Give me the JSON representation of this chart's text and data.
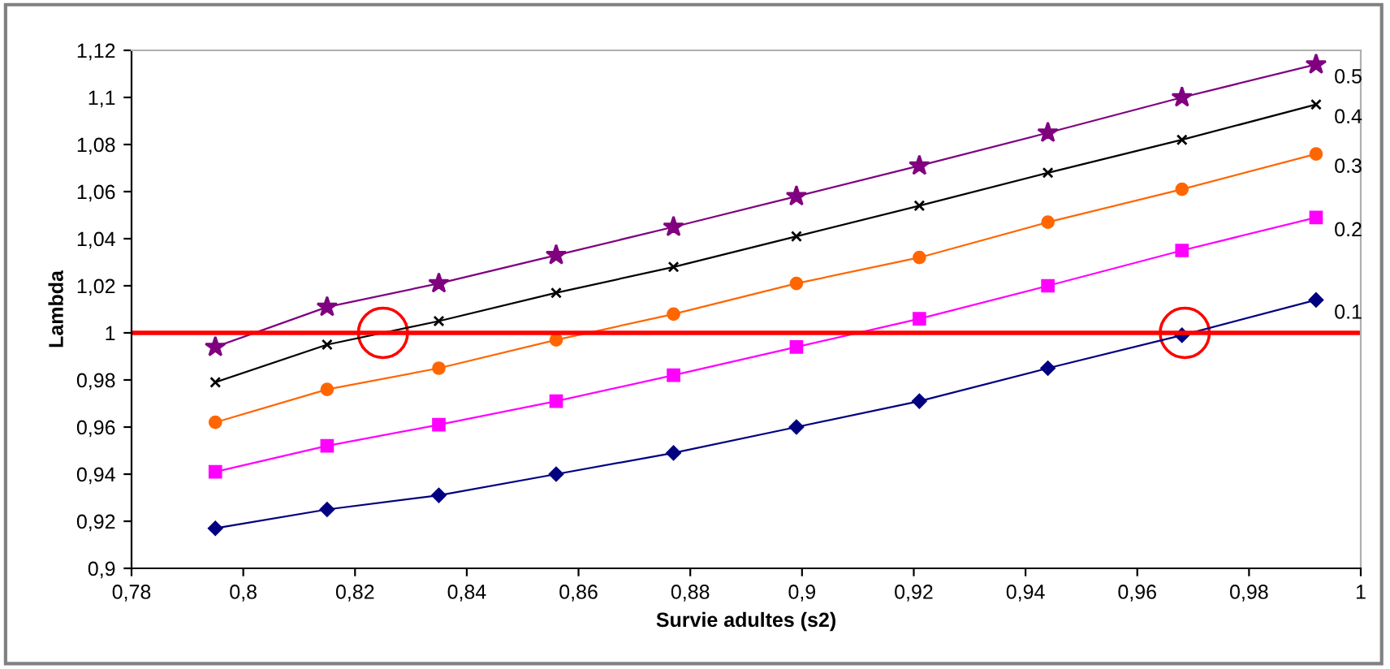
{
  "chart_data": {
    "type": "line",
    "xlabel": "Survie adultes (s2)",
    "ylabel": "Lambda",
    "x": [
      0.795,
      0.815,
      0.835,
      0.856,
      0.877,
      0.899,
      0.921,
      0.944,
      0.968,
      0.992
    ],
    "xlim": [
      0.78,
      1
    ],
    "xticks": [
      {
        "value": 0.78,
        "label": "0,78"
      },
      {
        "value": 0.8,
        "label": "0,8"
      },
      {
        "value": 0.82,
        "label": "0,82"
      },
      {
        "value": 0.84,
        "label": "0,84"
      },
      {
        "value": 0.86,
        "label": "0,86"
      },
      {
        "value": 0.88,
        "label": "0,88"
      },
      {
        "value": 0.9,
        "label": "0,9"
      },
      {
        "value": 0.92,
        "label": "0,92"
      },
      {
        "value": 0.94,
        "label": "0,94"
      },
      {
        "value": 0.96,
        "label": "0,96"
      },
      {
        "value": 0.98,
        "label": "0,98"
      },
      1
    ],
    "ylim": [
      0.9,
      1.12
    ],
    "yticks": [
      {
        "value": 0.9,
        "label": "0,9"
      },
      {
        "value": 0.92,
        "label": "0,92"
      },
      {
        "value": 0.94,
        "label": "0,94"
      },
      {
        "value": 0.96,
        "label": "0,96"
      },
      {
        "value": 0.98,
        "label": "0,98"
      },
      1,
      {
        "value": 1.02,
        "label": "1,02"
      },
      {
        "value": 1.04,
        "label": "1,04"
      },
      {
        "value": 1.06,
        "label": "1,06"
      },
      {
        "value": 1.08,
        "label": "1,08"
      },
      {
        "value": 1.1,
        "label": "1,1"
      },
      {
        "value": 1.12,
        "label": "1,12"
      }
    ],
    "grid": false,
    "legend": false,
    "ref_lines": [
      {
        "axis": "y",
        "value": 1,
        "color": "#ff0000",
        "line_style": "solid"
      }
    ],
    "series": [
      {
        "name": "0.1",
        "color": "#000080",
        "marker": "diamond",
        "values": [
          0.917,
          0.925,
          0.931,
          0.94,
          0.949,
          0.96,
          0.971,
          0.985,
          0.999,
          1.014
        ]
      },
      {
        "name": "0.2",
        "color": "#ff00ff",
        "marker": "square",
        "values": [
          0.941,
          0.952,
          0.961,
          0.971,
          0.982,
          0.994,
          1.006,
          1.02,
          1.035,
          1.049
        ]
      },
      {
        "name": "0.3",
        "color": "#ff6600",
        "marker": "circle",
        "values": [
          0.962,
          0.976,
          0.985,
          0.997,
          1.008,
          1.021,
          1.032,
          1.047,
          1.061,
          1.076
        ]
      },
      {
        "name": "0.4",
        "color": "#000000",
        "marker": "cross",
        "values": [
          0.979,
          0.995,
          1.005,
          1.017,
          1.028,
          1.041,
          1.054,
          1.068,
          1.082,
          1.097
        ]
      },
      {
        "name": "0.5",
        "color": "#800080",
        "marker": "star",
        "values": [
          0.994,
          1.011,
          1.021,
          1.033,
          1.045,
          1.058,
          1.071,
          1.085,
          1.1,
          1.114
        ]
      }
    ]
  }
}
